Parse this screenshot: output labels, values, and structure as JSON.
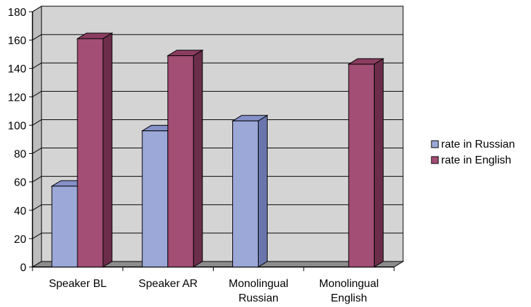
{
  "chart_data": {
    "type": "bar",
    "style": "3d-clustered-column",
    "categories": [
      [
        "Speaker BL"
      ],
      [
        "Speaker AR"
      ],
      [
        "Monolingual",
        "Russian"
      ],
      [
        "Monolingual",
        "English"
      ]
    ],
    "series": [
      {
        "name": "rate in Russian",
        "values": [
          57,
          96,
          103,
          null
        ],
        "color": "#9ba8d8",
        "side_color": "#6a76ab",
        "top_color": "#8590c8"
      },
      {
        "name": "rate in English",
        "values": [
          161,
          149,
          null,
          143
        ],
        "color": "#a34e74",
        "side_color": "#6b2d4a",
        "top_color": "#8b3d60"
      }
    ],
    "ylim": [
      0,
      180
    ],
    "yticks": [
      0,
      20,
      40,
      60,
      80,
      100,
      120,
      140,
      160,
      180
    ],
    "grid": true,
    "legend_position": "right",
    "wall_color": "#d4d4d4",
    "floor_color": "#8c8c8c"
  }
}
